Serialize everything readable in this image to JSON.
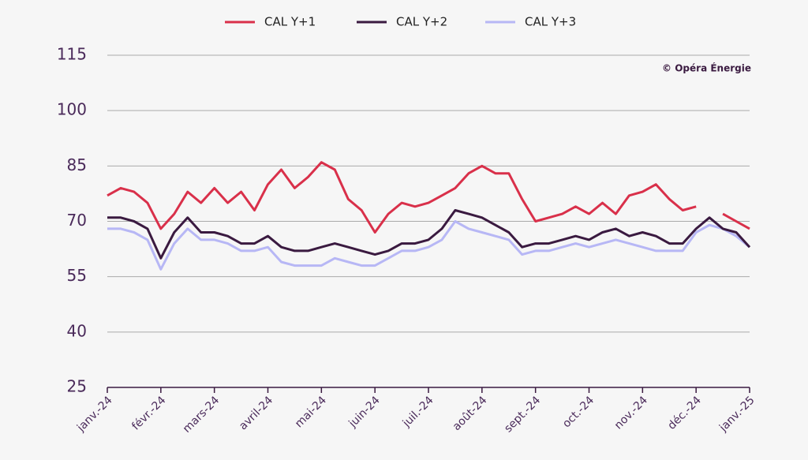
{
  "chart_data": {
    "type": "line",
    "annotation": "© Opéra Énergie",
    "categories": [
      "janv.-24",
      null,
      null,
      null,
      "févr.-24",
      null,
      null,
      null,
      "mars-24",
      null,
      null,
      null,
      "avril-24",
      null,
      null,
      null,
      "mai-24",
      null,
      null,
      null,
      "juin-24",
      null,
      null,
      null,
      "juil.-24",
      null,
      null,
      null,
      "août-24",
      null,
      null,
      null,
      "sept.-24",
      null,
      null,
      null,
      "oct.-24",
      null,
      null,
      null,
      "nov.-24",
      null,
      null,
      null,
      "déc.-24",
      null,
      null,
      null,
      "janv.-25"
    ],
    "series": [
      {
        "name": "CAL Y+1",
        "color": "#d9304a",
        "values": [
          77,
          79,
          78,
          75,
          68,
          72,
          78,
          75,
          79,
          75,
          78,
          73,
          80,
          84,
          79,
          82,
          86,
          84,
          76,
          73,
          67,
          72,
          75,
          74,
          75,
          77,
          79,
          83,
          85,
          83,
          83,
          76,
          70,
          71,
          72,
          74,
          72,
          75,
          72,
          77,
          78,
          80,
          76,
          73,
          74,
          null,
          72,
          70,
          68
        ]
      },
      {
        "name": "CAL Y+2",
        "color": "#3a1a40",
        "values": [
          71,
          71,
          70,
          68,
          60,
          67,
          71,
          67,
          67,
          66,
          64,
          64,
          66,
          63,
          62,
          62,
          63,
          64,
          63,
          62,
          61,
          62,
          64,
          64,
          65,
          68,
          73,
          72,
          71,
          69,
          67,
          63,
          64,
          64,
          65,
          66,
          65,
          67,
          68,
          66,
          67,
          66,
          64,
          64,
          68,
          71,
          68,
          67,
          63
        ]
      },
      {
        "name": "CAL Y+3",
        "color": "#b7b7f5",
        "values": [
          68,
          68,
          67,
          65,
          57,
          64,
          68,
          65,
          65,
          64,
          62,
          62,
          63,
          59,
          58,
          58,
          58,
          60,
          59,
          58,
          58,
          60,
          62,
          62,
          63,
          65,
          70,
          68,
          67,
          66,
          65,
          61,
          62,
          62,
          63,
          64,
          63,
          64,
          65,
          64,
          63,
          62,
          62,
          62,
          67,
          69,
          68,
          66,
          63
        ]
      }
    ],
    "ylim": [
      25,
      115
    ],
    "yticks": [
      25,
      40,
      55,
      70,
      85,
      100,
      115
    ],
    "grid": true
  }
}
